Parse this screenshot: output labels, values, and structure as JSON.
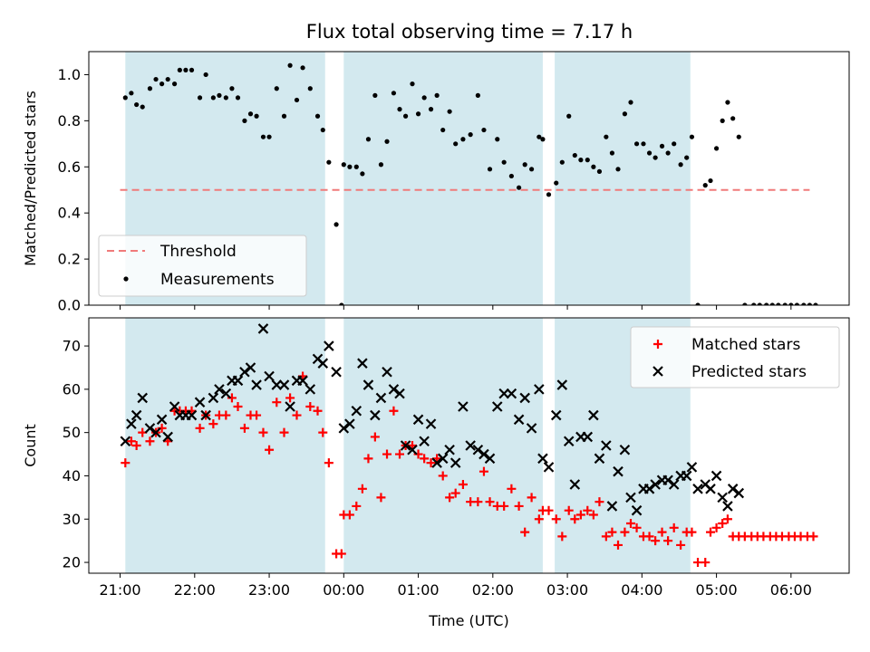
{
  "title": "Flux total observing time = 7.17 h",
  "colors": {
    "band": "#d3e9ef",
    "threshold": "#f07a7a",
    "measurement": "#000000",
    "matched": "#ff0000",
    "predicted": "#000000"
  },
  "chart_data": [
    {
      "type": "scatter",
      "panel": "top",
      "ylabel": "Matched/Predicted stars",
      "xlim": [
        20.58,
        30.78
      ],
      "ylim": [
        0,
        1.1
      ],
      "yticks": [
        0.0,
        0.2,
        0.4,
        0.6,
        0.8,
        1.0
      ],
      "ytick_labels": [
        "0.0",
        "0.2",
        "0.4",
        "0.6",
        "0.8",
        "1.0"
      ],
      "grid": false,
      "legend_position": "lower-left",
      "observing_windows": [
        [
          21.07,
          23.75
        ],
        [
          24.0,
          26.67
        ],
        [
          26.83,
          28.65
        ]
      ],
      "series": [
        {
          "name": "Threshold",
          "style": "dashed-line",
          "x": [
            21.0,
            30.25
          ],
          "y": [
            0.5,
            0.5
          ]
        },
        {
          "name": "Measurements",
          "style": "dot",
          "x": [
            21.07,
            21.15,
            21.22,
            21.3,
            21.4,
            21.48,
            21.56,
            21.64,
            21.73,
            21.8,
            21.88,
            21.96,
            22.07,
            22.15,
            22.25,
            22.33,
            22.42,
            22.5,
            22.58,
            22.67,
            22.75,
            22.83,
            22.92,
            23.0,
            23.1,
            23.2,
            23.28,
            23.37,
            23.45,
            23.55,
            23.65,
            23.72,
            23.8,
            23.9,
            23.97,
            24.0,
            24.08,
            24.17,
            24.25,
            24.33,
            24.42,
            24.5,
            24.58,
            24.67,
            24.75,
            24.83,
            24.92,
            25.0,
            25.08,
            25.17,
            25.25,
            25.33,
            25.42,
            25.5,
            25.6,
            25.7,
            25.8,
            25.88,
            25.96,
            26.06,
            26.15,
            26.25,
            26.35,
            26.43,
            26.52,
            26.62,
            26.67,
            26.75,
            26.85,
            26.93,
            27.02,
            27.1,
            27.18,
            27.27,
            27.35,
            27.43,
            27.52,
            27.6,
            27.68,
            27.77,
            27.85,
            27.93,
            28.02,
            28.1,
            28.18,
            28.27,
            28.35,
            28.43,
            28.52,
            28.6,
            28.67,
            28.75,
            28.85,
            28.92,
            29.0,
            29.08,
            29.15,
            29.22,
            29.3,
            29.38,
            29.5,
            29.58,
            29.67,
            29.75,
            29.83,
            29.92,
            30.0,
            30.08,
            30.17,
            30.25,
            30.33
          ],
          "y": [
            0.9,
            0.92,
            0.87,
            0.86,
            0.94,
            0.98,
            0.96,
            0.98,
            0.96,
            1.02,
            1.02,
            1.02,
            0.9,
            1.0,
            0.9,
            0.91,
            0.9,
            0.94,
            0.9,
            0.8,
            0.83,
            0.82,
            0.73,
            0.73,
            0.94,
            0.82,
            1.04,
            0.89,
            1.03,
            0.94,
            0.82,
            0.76,
            0.62,
            0.35,
            0.0,
            0.61,
            0.6,
            0.6,
            0.57,
            0.72,
            0.91,
            0.61,
            0.71,
            0.92,
            0.85,
            0.82,
            0.96,
            0.83,
            0.9,
            0.85,
            0.91,
            0.76,
            0.84,
            0.7,
            0.72,
            0.74,
            0.91,
            0.76,
            0.59,
            0.72,
            0.62,
            0.56,
            0.51,
            0.61,
            0.59,
            0.73,
            0.72,
            0.48,
            0.53,
            0.62,
            0.82,
            0.65,
            0.63,
            0.63,
            0.6,
            0.58,
            0.73,
            0.66,
            0.59,
            0.83,
            0.88,
            0.7,
            0.7,
            0.66,
            0.64,
            0.69,
            0.66,
            0.7,
            0.61,
            0.64,
            0.73,
            0.0,
            0.52,
            0.54,
            0.68,
            0.8,
            0.88,
            0.81,
            0.73,
            0.0,
            0.0,
            0.0,
            0.0,
            0.0,
            0.0,
            0.0,
            0.0,
            0.0,
            0.0,
            0.0,
            0.0
          ]
        }
      ]
    },
    {
      "type": "scatter",
      "panel": "bottom",
      "xlabel": "Time (UTC)",
      "ylabel": "Count",
      "xlim": [
        20.58,
        30.78
      ],
      "ylim": [
        17.5,
        76.5
      ],
      "xticks": [
        21,
        22,
        23,
        24,
        25,
        26,
        27,
        28,
        29,
        30
      ],
      "xtick_labels": [
        "21:00",
        "22:00",
        "23:00",
        "00:00",
        "01:00",
        "02:00",
        "03:00",
        "04:00",
        "05:00",
        "06:00"
      ],
      "yticks": [
        20,
        30,
        40,
        50,
        60,
        70
      ],
      "ytick_labels": [
        "20",
        "30",
        "40",
        "50",
        "60",
        "70"
      ],
      "grid": false,
      "legend_position": "top-right",
      "observing_windows": [
        [
          21.07,
          23.75
        ],
        [
          24.0,
          26.67
        ],
        [
          26.83,
          28.65
        ]
      ],
      "series": [
        {
          "name": "Matched stars",
          "marker": "plus",
          "x": [
            21.07,
            21.15,
            21.22,
            21.3,
            21.4,
            21.48,
            21.56,
            21.64,
            21.73,
            21.8,
            21.88,
            21.96,
            22.07,
            22.15,
            22.25,
            22.33,
            22.42,
            22.5,
            22.58,
            22.67,
            22.75,
            22.83,
            22.92,
            23.0,
            23.1,
            23.2,
            23.28,
            23.37,
            23.45,
            23.55,
            23.65,
            23.72,
            23.8,
            23.9,
            23.97,
            24.0,
            24.08,
            24.17,
            24.25,
            24.33,
            24.42,
            24.5,
            24.58,
            24.67,
            24.75,
            24.83,
            24.92,
            25.0,
            25.08,
            25.17,
            25.25,
            25.33,
            25.42,
            25.5,
            25.6,
            25.7,
            25.8,
            25.88,
            25.96,
            26.06,
            26.15,
            26.25,
            26.35,
            26.43,
            26.52,
            26.62,
            26.67,
            26.75,
            26.85,
            26.93,
            27.02,
            27.1,
            27.18,
            27.27,
            27.35,
            27.43,
            27.52,
            27.6,
            27.68,
            27.77,
            27.85,
            27.93,
            28.02,
            28.1,
            28.18,
            28.27,
            28.35,
            28.43,
            28.52,
            28.6,
            28.67,
            28.75,
            28.85,
            28.92,
            29.0,
            29.08,
            29.15,
            29.22,
            29.3,
            29.38,
            29.47,
            29.55,
            29.63,
            29.72,
            29.8,
            29.88,
            29.97,
            30.05,
            30.13,
            30.22,
            30.3
          ],
          "y": [
            43,
            48,
            47,
            50,
            48,
            50,
            51,
            48,
            55,
            55,
            55,
            55,
            51,
            54,
            52,
            54,
            54,
            58,
            56,
            51,
            54,
            54,
            50,
            46,
            57,
            50,
            58,
            54,
            63,
            56,
            55,
            50,
            43,
            22,
            22,
            31,
            31,
            33,
            37,
            44,
            49,
            35,
            45,
            55,
            45,
            47,
            47,
            45,
            44,
            43,
            44,
            40,
            35,
            36,
            38,
            34,
            34,
            41,
            34,
            33,
            33,
            37,
            33,
            27,
            35,
            30,
            32,
            32,
            30,
            26,
            32,
            30,
            31,
            32,
            31,
            34,
            26,
            27,
            24,
            27,
            29,
            28,
            26,
            26,
            25,
            27,
            25,
            28,
            24,
            27,
            27,
            20,
            20,
            27,
            28,
            29,
            30,
            26,
            26,
            26,
            26,
            26,
            26,
            26,
            26,
            26,
            26,
            26,
            26,
            26,
            26
          ]
        },
        {
          "name": "Predicted stars",
          "marker": "x",
          "x": [
            21.07,
            21.15,
            21.22,
            21.3,
            21.4,
            21.48,
            21.56,
            21.64,
            21.73,
            21.8,
            21.88,
            21.96,
            22.07,
            22.15,
            22.25,
            22.33,
            22.42,
            22.5,
            22.58,
            22.67,
            22.75,
            22.83,
            22.92,
            23.0,
            23.1,
            23.2,
            23.28,
            23.37,
            23.45,
            23.55,
            23.65,
            23.72,
            23.8,
            23.9,
            24.0,
            24.08,
            24.17,
            24.25,
            24.33,
            24.42,
            24.5,
            24.58,
            24.67,
            24.75,
            24.83,
            24.92,
            25.0,
            25.08,
            25.17,
            25.25,
            25.33,
            25.42,
            25.5,
            25.6,
            25.7,
            25.8,
            25.88,
            25.96,
            26.06,
            26.15,
            26.25,
            26.35,
            26.43,
            26.52,
            26.62,
            26.67,
            26.75,
            26.85,
            26.93,
            27.02,
            27.1,
            27.18,
            27.27,
            27.35,
            27.43,
            27.52,
            27.6,
            27.68,
            27.77,
            27.85,
            27.93,
            28.02,
            28.1,
            28.18,
            28.27,
            28.35,
            28.43,
            28.52,
            28.6,
            28.67,
            28.75,
            28.85,
            28.92,
            29.0,
            29.08,
            29.15,
            29.22,
            29.3
          ],
          "y": [
            48,
            52,
            54,
            58,
            51,
            50,
            53,
            49,
            56,
            54,
            54,
            54,
            57,
            54,
            58,
            60,
            59,
            62,
            62,
            64,
            65,
            61,
            74,
            63,
            61,
            61,
            56,
            62,
            62,
            60,
            67,
            66,
            70,
            64,
            51,
            52,
            55,
            66,
            61,
            54,
            58,
            64,
            60,
            59,
            47,
            46,
            53,
            48,
            52,
            43,
            44,
            46,
            43,
            56,
            47,
            46,
            45,
            44,
            56,
            59,
            59,
            53,
            58,
            51,
            60,
            44,
            42,
            54,
            61,
            48,
            38,
            49,
            49,
            54,
            44,
            47,
            33,
            41,
            46,
            35,
            32,
            37,
            37,
            38,
            39,
            39,
            38,
            40,
            40,
            42,
            37,
            38,
            37,
            40,
            35,
            33,
            37,
            36
          ]
        }
      ]
    }
  ]
}
